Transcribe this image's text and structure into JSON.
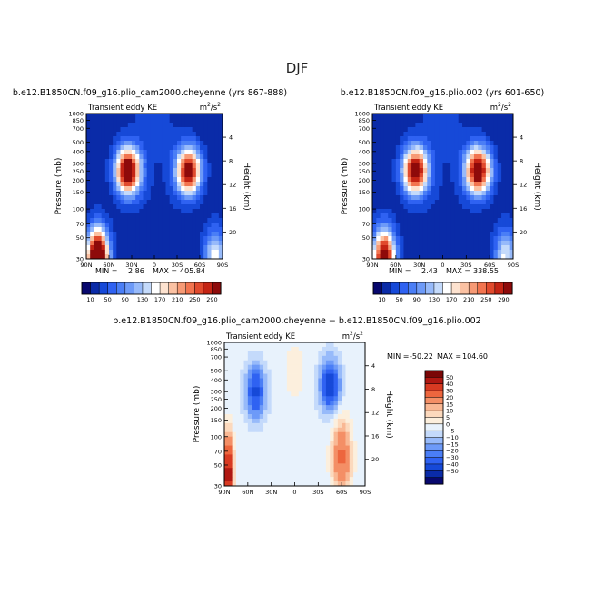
{
  "figure": {
    "title": "DJF"
  },
  "colors": {
    "abs_palette": [
      "#08086e",
      "#0a2ba8",
      "#1649d8",
      "#2f62f2",
      "#4a7ef6",
      "#6d9af8",
      "#97bafa",
      "#c4dafb",
      "#ffffff",
      "#fde2cf",
      "#fbc1a2",
      "#f79a75",
      "#f2744f",
      "#e14a2d",
      "#c42414",
      "#8e0a0a"
    ],
    "diff_palette": [
      "#08086e",
      "#0a2ba8",
      "#1649d8",
      "#2f62f2",
      "#4a7ef6",
      "#6d9af8",
      "#97bafa",
      "#c4dafb",
      "#e8f2fc",
      "#fcefdd",
      "#fcd9bd",
      "#f9b894",
      "#f48f66",
      "#ed663e",
      "#d83a22",
      "#b01812",
      "#7a0606"
    ]
  },
  "common": {
    "subtitle": "Transient eddy KE",
    "units_base": "m",
    "units_exp": "2",
    "units_den": "/s",
    "units_den_exp": "2",
    "ylabel": "Pressure (mb)",
    "y2label": "Height (km)",
    "pressure_ticks": [
      "30",
      "50",
      "70",
      "100",
      "150",
      "200",
      "250",
      "300",
      "400",
      "500",
      "700",
      "850",
      "1000"
    ],
    "height_ticks": [
      "20",
      "16",
      "12",
      "8",
      "4"
    ],
    "lat_ticks": [
      "90N",
      "60N",
      "30N",
      "0",
      "30S",
      "60S",
      "90S"
    ]
  },
  "chart_data": [
    {
      "type": "heatmap",
      "title": "b.e12.B1850CN.f09_g16.plio_cam2000.cheyenne (yrs 867-888)",
      "min_label": "MIN =",
      "min_value": "2.86",
      "max_label": "MAX =",
      "max_value": "405.84",
      "xlabel": "",
      "ylabel": "Pressure (mb)",
      "x_range": [
        90,
        -90
      ],
      "y_range_mb": [
        1000,
        30
      ],
      "levels": [
        10,
        30,
        50,
        70,
        90,
        110,
        130,
        150,
        170,
        190,
        210,
        230,
        250,
        270,
        290
      ],
      "colorbar_labels": [
        "10",
        "50",
        "90",
        "130",
        "170",
        "210",
        "250",
        "290"
      ],
      "features": [
        {
          "lat": 35,
          "pressure": 250,
          "peak": 330
        },
        {
          "lat": -45,
          "pressure": 250,
          "peak": 300
        },
        {
          "lat": 75,
          "pressure": 30,
          "peak": 400
        },
        {
          "lat": -80,
          "pressure": 30,
          "peak": 150
        }
      ]
    },
    {
      "type": "heatmap",
      "title": "b.e12.B1850CN.f09_g16.plio.002 (yrs 601-650)",
      "min_label": "MIN =",
      "min_value": "2.43",
      "max_label": "MAX =",
      "max_value": "338.55",
      "xlabel": "",
      "ylabel": "Pressure (mb)",
      "x_range": [
        90,
        -90
      ],
      "y_range_mb": [
        1000,
        30
      ],
      "levels": [
        10,
        30,
        50,
        70,
        90,
        110,
        130,
        150,
        170,
        190,
        210,
        230,
        250,
        270,
        290
      ],
      "colorbar_labels": [
        "10",
        "50",
        "90",
        "130",
        "170",
        "210",
        "250",
        "290"
      ],
      "features": [
        {
          "lat": 35,
          "pressure": 250,
          "peak": 310
        },
        {
          "lat": -45,
          "pressure": 250,
          "peak": 320
        },
        {
          "lat": 75,
          "pressure": 30,
          "peak": 330
        },
        {
          "lat": -80,
          "pressure": 30,
          "peak": 140
        }
      ]
    },
    {
      "type": "heatmap",
      "title": "b.e12.B1850CN.f09_g16.plio_cam2000.cheyenne − b.e12.B1850CN.f09_g16.plio.002",
      "min_label": "MIN =",
      "min_value": "-50.22",
      "max_label": "MAX =",
      "max_value": "104.60",
      "xlabel": "",
      "ylabel": "Pressure (mb)",
      "x_range": [
        90,
        -90
      ],
      "y_range_mb": [
        1000,
        30
      ],
      "levels": [
        -50,
        -40,
        -30,
        -20,
        -15,
        -10,
        -5,
        0,
        5,
        10,
        15,
        20,
        30,
        40,
        50
      ],
      "colorbar_labels": [
        "50",
        "40",
        "30",
        "20",
        "15",
        "10",
        "5",
        "0",
        "−5",
        "−10",
        "−15",
        "−20",
        "−30",
        "−40",
        "−50"
      ],
      "features": [
        {
          "lat": 85,
          "pressure": 40,
          "peak": 60
        },
        {
          "lat": 50,
          "pressure": 300,
          "peak": -35
        },
        {
          "lat": -45,
          "pressure": 350,
          "peak": -40
        },
        {
          "lat": -60,
          "pressure": 60,
          "peak": 30
        },
        {
          "lat": 0,
          "pressure": 500,
          "peak": 8
        }
      ]
    }
  ]
}
